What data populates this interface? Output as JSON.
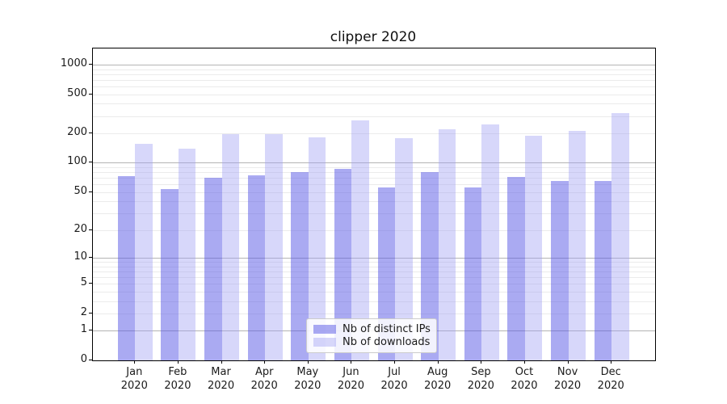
{
  "chart_data": {
    "type": "bar",
    "title": "clipper 2020",
    "categories": [
      "Jan",
      "Feb",
      "Mar",
      "Apr",
      "May",
      "Jun",
      "Jul",
      "Aug",
      "Sep",
      "Oct",
      "Nov",
      "Dec"
    ],
    "x_tick_second_line": "2020",
    "series": [
      {
        "name": "Nb of distinct IPs",
        "color": "#5555e5",
        "opacity": 0.5,
        "values": [
          73,
          54,
          70,
          75,
          80,
          87,
          56,
          80,
          56,
          71,
          65,
          65
        ]
      },
      {
        "name": "Nb of downloads",
        "color": "#9f9ff3",
        "opacity": 0.42,
        "values": [
          155,
          140,
          198,
          198,
          182,
          270,
          177,
          220,
          247,
          189,
          212,
          320
        ]
      }
    ],
    "y_ticks": [
      0,
      1,
      2,
      5,
      10,
      20,
      50,
      100,
      200,
      500,
      1000
    ],
    "y_scale": "log10(1+v)",
    "ylim": [
      0,
      1460
    ],
    "grid": "horizontal",
    "grid_major_at": [
      1,
      10,
      100,
      1000
    ],
    "legend_position": "lower center"
  }
}
